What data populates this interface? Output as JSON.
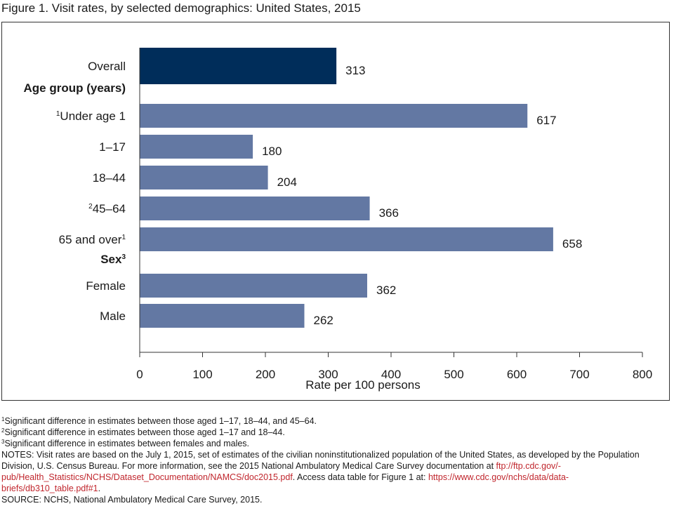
{
  "title": "Figure 1. Visit rates, by selected demographics: United States, 2015",
  "chart_data": {
    "type": "bar",
    "orientation": "horizontal",
    "xlabel": "Rate per 100 persons",
    "xlim": [
      0,
      800
    ],
    "xticks": [
      "0",
      "100",
      "200",
      "300",
      "400",
      "500",
      "600",
      "700",
      "800"
    ],
    "colors": {
      "overall": "#002d5a",
      "group": "#6378a3"
    },
    "groups": [
      {
        "label": "Age group (years)",
        "sup": ""
      },
      {
        "label": "Sex",
        "sup": "3"
      }
    ],
    "bars": [
      {
        "label": "Overall",
        "pre": "",
        "sup": "",
        "value": 313,
        "value_label": "313",
        "style": "overall"
      },
      {
        "label": "Under age 1",
        "pre": "1",
        "sup": "",
        "value": 617,
        "value_label": "617",
        "style": "group"
      },
      {
        "label": "1–17",
        "pre": "",
        "sup": "",
        "value": 180,
        "value_label": "180",
        "style": "group"
      },
      {
        "label": "18–44",
        "pre": "",
        "sup": "",
        "value": 204,
        "value_label": "204",
        "style": "group"
      },
      {
        "label": "45–64",
        "pre": "2",
        "sup": "",
        "value": 366,
        "value_label": "366",
        "style": "group"
      },
      {
        "label": "65 and over",
        "pre": "",
        "sup": "1",
        "value": 658,
        "value_label": "658",
        "style": "group"
      },
      {
        "label": "Female",
        "pre": "",
        "sup": "",
        "value": 362,
        "value_label": "362",
        "style": "group"
      },
      {
        "label": "Male",
        "pre": "",
        "sup": "",
        "value": 262,
        "value_label": "262",
        "style": "group"
      }
    ]
  },
  "footnotes": {
    "f1": {
      "sup": "1",
      "text": "Significant difference in estimates between those aged 1–17, 18–44, and 45–64."
    },
    "f2": {
      "sup": "2",
      "text": "Significant difference in estimates between those aged 1–17 and 18–44."
    },
    "f3": {
      "sup": "3",
      "text": "Significant difference in estimates between females and males."
    }
  },
  "notes": {
    "text1": "NOTES: Visit rates are based on the July 1, 2015, set of estimates of the civilian noninstitutionalized population of the United States, as developed by the Population Division, U.S. Census Bureau. For more information, see the 2015 National Ambulatory Medical Care Survey documentation at ",
    "link1": "ftp://ftp.cdc.gov/-pub/Health_Statistics/NCHS/Dataset_Documentation/NAMCS/doc2015.pdf",
    "text2": ". Access data table for Figure 1 at: ",
    "link2": "https://www.cdc.gov/nchs/data/data-briefs/db310_table.pdf#1",
    "text3": "."
  },
  "source": "SOURCE: NCHS, National Ambulatory Medical Care Survey, 2015."
}
